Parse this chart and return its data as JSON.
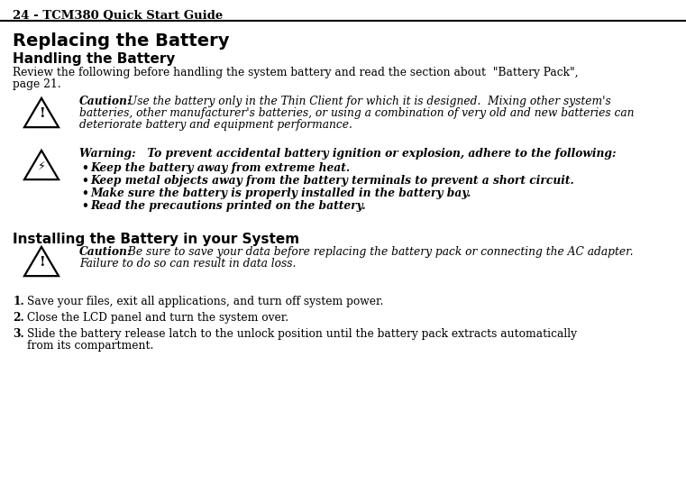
{
  "header_text": "24 - TCM380 Quick Start Guide",
  "title1": "Replacing the Battery",
  "title2": "Handling the Battery",
  "body1_line1": "Review the following before handling the system battery and read the section about  \"Battery Pack\",",
  "body1_line2": "page 21.",
  "caution1_bold": "Caution:",
  "caution1_rest": " Use the battery only in the Thin Client for which it is designed.  Mixing other system's",
  "caution1_line2": "batteries, other manufacturer's batteries, or using a combination of very old and new batteries can",
  "caution1_line3": "deteriorate battery and equipment performance.",
  "warning_line": "Warning:   To prevent accidental battery ignition or explosion, adhere to the following:",
  "bullet1": "Keep the battery away from extreme heat.",
  "bullet2": "Keep metal objects away from the battery terminals to prevent a short circuit.",
  "bullet3": "Make sure the battery is properly installed in the battery bay.",
  "bullet4": "Read the precautions printed on the battery.",
  "title3": "Installing the Battery in your System",
  "caution2_bold": "Caution:",
  "caution2_rest": " Be sure to save your data before replacing the battery pack or connecting the AC adapter.",
  "caution2_line2": "Failure to do so can result in data loss.",
  "step1_num": "1.",
  "step1_text": "Save your files, exit all applications, and turn off system power.",
  "step2_num": "2.",
  "step2_text": "Close the LCD panel and turn the system over.",
  "step3_num": "3.",
  "step3_line1": "Slide the battery release latch to the unlock position until the battery pack extracts automatically",
  "step3_line2": "from its compartment.",
  "bg_color": "#ffffff",
  "text_color": "#000000",
  "header_fontsize": 9.5,
  "body_fontsize": 8.8,
  "title1_fontsize": 14,
  "title2_fontsize": 11,
  "title3_fontsize": 11,
  "warn_fontsize": 8.8,
  "bullet_fontsize": 8.8
}
